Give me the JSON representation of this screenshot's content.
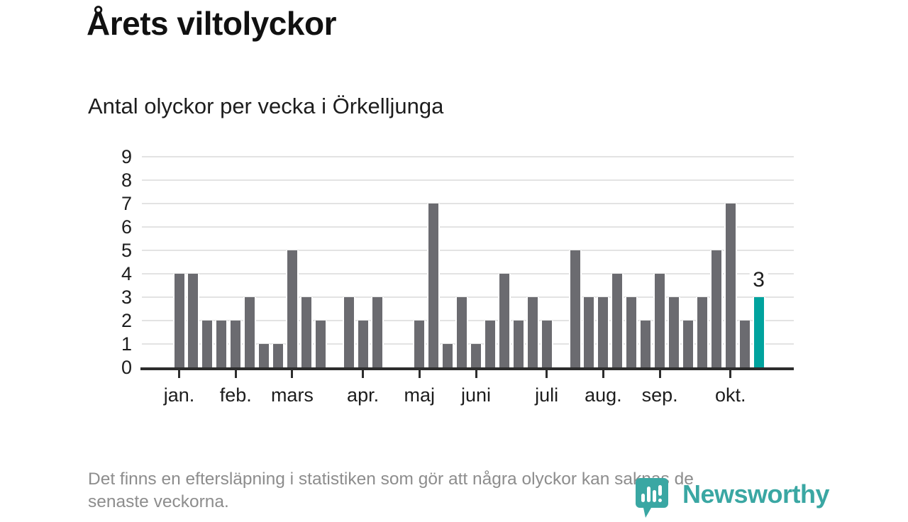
{
  "title": "Årets viltolyckor",
  "subtitle": "Antal olyckor per vecka i Örkelljunga",
  "footnote": {
    "line1": "Det finns en eftersläpning i statistiken som gör att några olyckor kan saknas de",
    "line2": "senaste veckorna.",
    "full_text": "Det finns en eftersläpning i statistiken som gör att några olyckor kan saknas de senaste veckorna."
  },
  "brand": {
    "name": "Newsworthy",
    "icon": "bar-chart-speech-bubble-icon",
    "color": "#3aa7a3"
  },
  "colors": {
    "bar": "#6b6b70",
    "highlight_bar": "#00a39e",
    "gridline": "#e3e3e3",
    "axis": "#2d2d2d",
    "text": "#1d1d1d",
    "muted_text": "#8d8d8d"
  },
  "chart_data": {
    "type": "bar",
    "title": "Årets viltolyckor",
    "subtitle": "Antal olyckor per vecka i Örkelljunga",
    "x_unit": "vecka (week of year)",
    "ylabel": "",
    "xlabel": "",
    "ylim": [
      0,
      9
    ],
    "yticks": [
      0,
      1,
      2,
      3,
      4,
      5,
      6,
      7,
      8,
      9
    ],
    "grid": true,
    "legend": "none",
    "values": [
      4,
      4,
      2,
      2,
      2,
      3,
      1,
      1,
      5,
      3,
      2,
      0,
      3,
      2,
      3,
      0,
      0,
      2,
      7,
      1,
      3,
      1,
      2,
      4,
      2,
      3,
      2,
      0,
      5,
      3,
      3,
      4,
      3,
      2,
      4,
      3,
      2,
      3,
      5,
      7,
      2,
      3
    ],
    "x_ticks": [
      {
        "label": "jan.",
        "week": 1
      },
      {
        "label": "feb.",
        "week": 5
      },
      {
        "label": "mars",
        "week": 9
      },
      {
        "label": "apr.",
        "week": 14
      },
      {
        "label": "maj",
        "week": 18
      },
      {
        "label": "juni",
        "week": 22
      },
      {
        "label": "juli",
        "week": 27
      },
      {
        "label": "aug.",
        "week": 31
      },
      {
        "label": "sep.",
        "week": 35
      },
      {
        "label": "okt.",
        "week": 40
      }
    ],
    "highlight_last_bar": true,
    "last_bar_value_label": "3"
  }
}
